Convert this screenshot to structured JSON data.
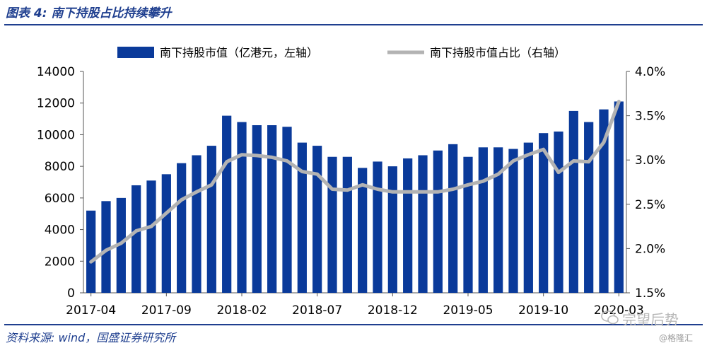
{
  "figure": {
    "title": "图表 4:  南下持股占比持续攀升",
    "source": "资料来源:  wind，国盛证券研究所",
    "watermark": "完望后势",
    "watermark_sub": "@格隆汇"
  },
  "colors": {
    "bar": "#0a3a9a",
    "line": "#b3b3b3",
    "frame": "#1f3f8f"
  },
  "chart_data": {
    "type": "bar",
    "legend_position": "top",
    "grid": false,
    "xticks": [
      "2017-04",
      "2017-09",
      "2018-02",
      "2018-07",
      "2018-12",
      "2019-05",
      "2019-10",
      "2020-03"
    ],
    "categories": [
      "2017-04",
      "2017-05",
      "2017-06",
      "2017-07",
      "2017-08",
      "2017-09",
      "2017-10",
      "2017-11",
      "2017-12",
      "2018-01",
      "2018-02",
      "2018-03",
      "2018-04",
      "2018-05",
      "2018-06",
      "2018-07",
      "2018-08",
      "2018-09",
      "2018-10",
      "2018-11",
      "2018-12",
      "2019-01",
      "2019-02",
      "2019-03",
      "2019-04",
      "2019-05",
      "2019-06",
      "2019-07",
      "2019-08",
      "2019-09",
      "2019-10",
      "2019-11",
      "2019-12",
      "2020-01",
      "2020-02",
      "2020-03"
    ],
    "series": [
      {
        "name": "南下持股市值（亿港元，左轴）",
        "type": "bar",
        "axis": "left",
        "values": [
          5200,
          5800,
          6000,
          6800,
          7100,
          7500,
          8200,
          8700,
          9300,
          11200,
          10800,
          10600,
          10600,
          10500,
          9500,
          9300,
          8600,
          8600,
          7900,
          8300,
          8000,
          8500,
          8700,
          9000,
          9400,
          8600,
          9200,
          9200,
          9100,
          9500,
          10100,
          10200,
          11500,
          10800,
          11600,
          12100
        ]
      },
      {
        "name": "南下持股市值占比（右轴）",
        "type": "line",
        "axis": "right",
        "values": [
          1.85,
          1.98,
          2.06,
          2.2,
          2.25,
          2.4,
          2.55,
          2.64,
          2.72,
          2.98,
          3.06,
          3.05,
          3.03,
          2.99,
          2.87,
          2.84,
          2.67,
          2.66,
          2.72,
          2.67,
          2.64,
          2.64,
          2.64,
          2.64,
          2.67,
          2.72,
          2.76,
          2.84,
          2.99,
          3.06,
          3.12,
          2.86,
          2.99,
          2.98,
          3.2,
          3.66
        ]
      }
    ],
    "y_left": {
      "min": 0,
      "max": 14000,
      "ticks": [
        "0",
        "2000",
        "4000",
        "6000",
        "8000",
        "10000",
        "12000",
        "14000"
      ]
    },
    "y_right": {
      "min": 1.5,
      "max": 4.0,
      "ticks": [
        "1.5%",
        "2.0%",
        "2.5%",
        "3.0%",
        "3.5%",
        "4.0%"
      ]
    }
  }
}
